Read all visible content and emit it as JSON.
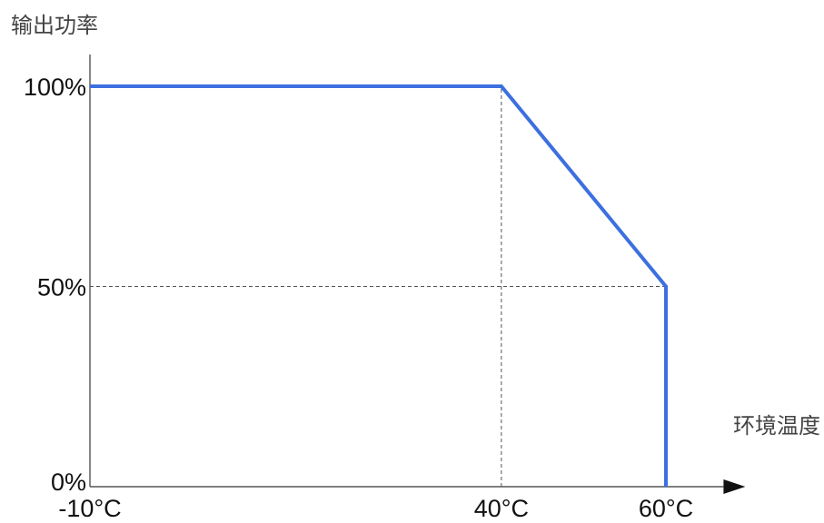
{
  "chart_data": {
    "type": "line",
    "ylabel": "输出功率",
    "xlabel": "环境温度",
    "x_ticks": [
      "-10°C",
      "40°C",
      "60°C"
    ],
    "x_tick_values": [
      -10,
      40,
      60
    ],
    "y_ticks": [
      "0%",
      "50%",
      "100%"
    ],
    "y_tick_values": [
      0,
      50,
      100
    ],
    "xlim": [
      -10,
      67
    ],
    "ylim": [
      0,
      115
    ],
    "grid": false,
    "series": [
      {
        "x": [
          -10,
          40,
          60,
          60
        ],
        "y": [
          100,
          100,
          50,
          0
        ],
        "color": "#3d6fe0"
      }
    ],
    "guides": [
      {
        "orientation": "vertical",
        "x": 40,
        "from_y": 0,
        "to_y": 100
      },
      {
        "orientation": "vertical",
        "x": 60,
        "from_y": 0,
        "to_y": 50
      },
      {
        "orientation": "horizontal",
        "y": 50,
        "from_x": -10,
        "to_x": 60
      }
    ],
    "axis_color": "#555555",
    "text_color": "#111111"
  }
}
